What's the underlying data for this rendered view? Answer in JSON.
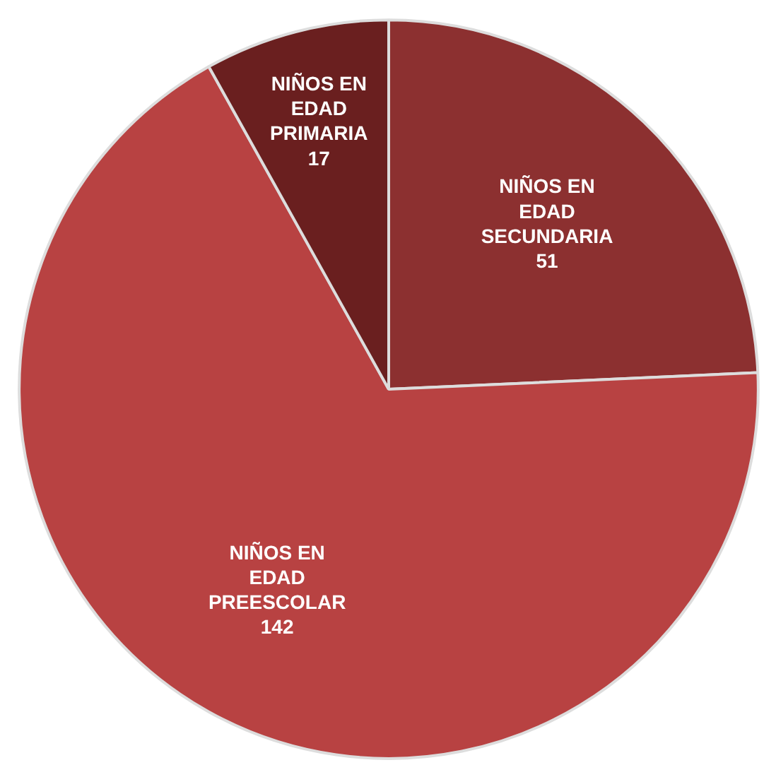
{
  "chart_data": {
    "type": "pie",
    "categories": [
      "NIÑOS EN EDAD SECUNDARIA",
      "NIÑOS EN EDAD PREESCOLAR",
      "NIÑOS EN EDAD PRIMARIA"
    ],
    "values": [
      51,
      142,
      17
    ],
    "colors": [
      "#8c3030",
      "#b84242",
      "#6a1f1f"
    ],
    "data_labels": true,
    "legend": false
  }
}
